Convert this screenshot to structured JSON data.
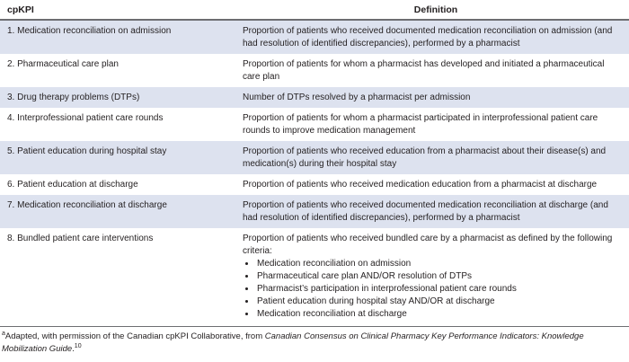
{
  "table": {
    "columns": {
      "kpi": "cpKPI",
      "definition": "Definition"
    },
    "rows": [
      {
        "kpi": "1. Medication reconciliation on admission",
        "definition": "Proportion of patients who received documented medication reconciliation on admission (and had resolution of identified discrepancies), performed by a pharmacist"
      },
      {
        "kpi": "2. Pharmaceutical care plan",
        "definition": "Proportion of patients for whom a pharmacist has developed and initiated a pharmaceutical care plan"
      },
      {
        "kpi": "3. Drug therapy problems (DTPs)",
        "definition": "Number of DTPs resolved by a pharmacist per admission"
      },
      {
        "kpi": "4. Interprofessional patient care rounds",
        "definition": "Proportion of patients for whom a pharmacist participated in interprofessional patient care rounds to improve medication management"
      },
      {
        "kpi": "5. Patient education during hospital stay",
        "definition": "Proportion of patients who received education from a pharmacist about their disease(s) and medication(s) during their hospital stay"
      },
      {
        "kpi": "6. Patient education at discharge",
        "definition": "Proportion of patients who received medication education from a pharmacist at discharge"
      },
      {
        "kpi": "7. Medication reconciliation at discharge",
        "definition": "Proportion of patients who received documented medication reconciliation at discharge (and had resolution of identified discrepancies), performed by a pharmacist"
      },
      {
        "kpi": "8. Bundled patient care interventions",
        "definition": "Proportion of patients who received bundled care by a pharmacist as defined by the following criteria:",
        "bullets": [
          "Medication reconciliation on admission",
          "Pharmaceutical care plan AND/OR resolution of DTPs",
          "Pharmacist’s participation in interprofessional patient care rounds",
          "Patient education during hospital stay AND/OR at discharge",
          "Medication reconciliation at discharge"
        ]
      }
    ]
  },
  "footnote": {
    "marker": "a",
    "text_before_italic": "Adapted, with permission of the Canadian cpKPI Collaborative, from ",
    "italic_title": "Canadian Consensus on Clinical Pharmacy Key Performance Indicators: Knowledge Mobilization Guide",
    "after_italic": ".",
    "reference_number": "10"
  },
  "colors": {
    "stripe": "#dde2ef",
    "rule": "#6d6e71",
    "text": "#231f20"
  }
}
